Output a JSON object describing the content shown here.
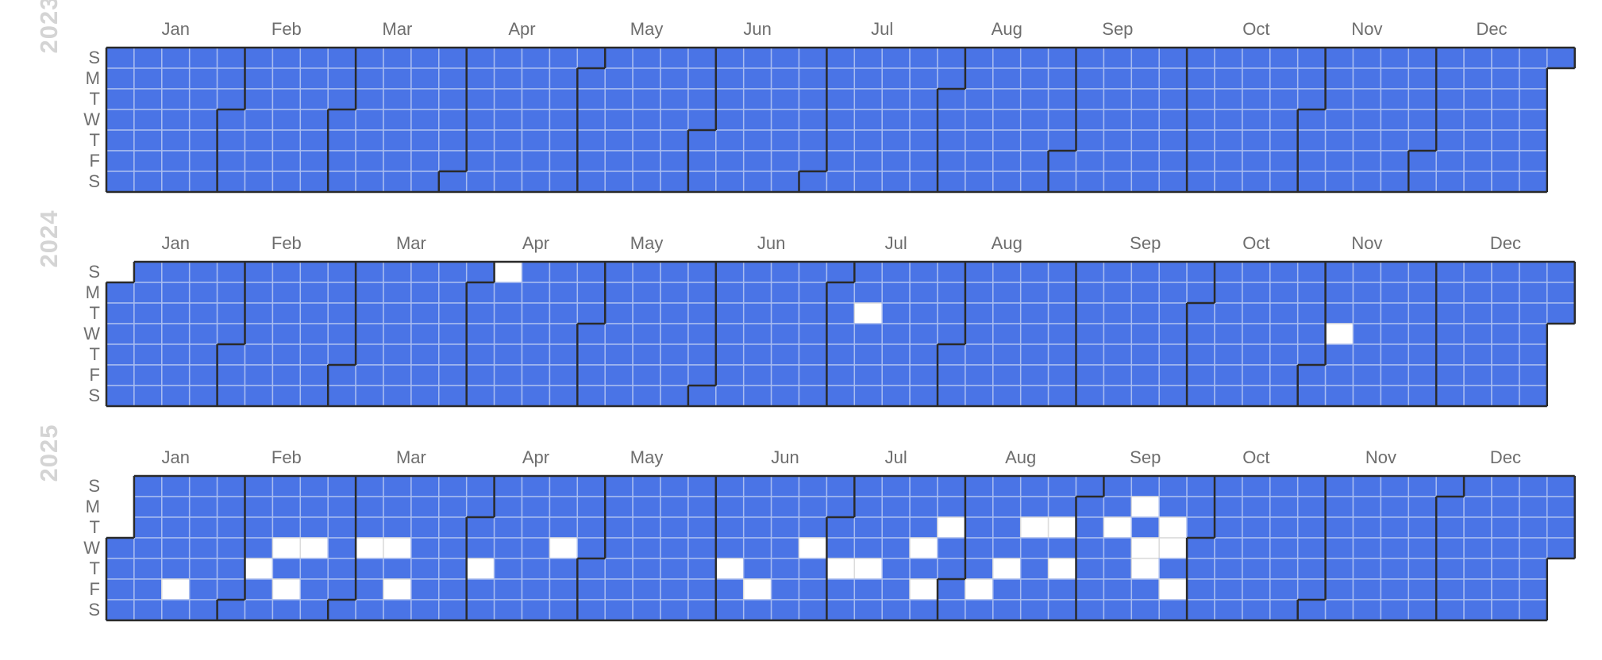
{
  "chart_data": {
    "type": "heatmap",
    "title": "",
    "layout": "calendar heatmap, one row-block per year, weeks as columns, Sunday-first rows",
    "day_labels": [
      "S",
      "M",
      "T",
      "W",
      "T",
      "F",
      "S"
    ],
    "month_labels": [
      "Jan",
      "Feb",
      "Mar",
      "Apr",
      "May",
      "Jun",
      "Jul",
      "Aug",
      "Sep",
      "Oct",
      "Nov",
      "Dec"
    ],
    "colors": {
      "filled": "#4a74e6",
      "empty": "#ffffff",
      "grid_line": "#a8bcf0",
      "month_border": "#2a2a2a"
    },
    "legend": "none",
    "years": [
      {
        "year": "2023",
        "empty_dates": []
      },
      {
        "year": "2024",
        "empty_dates": [
          "2024-04-07",
          "2024-07-09",
          "2024-11-06"
        ]
      },
      {
        "year": "2025",
        "empty_dates": [
          "2025-01-17",
          "2025-02-06",
          "2025-02-12",
          "2025-02-14",
          "2025-02-19",
          "2025-03-05",
          "2025-03-12",
          "2025-03-14",
          "2025-04-03",
          "2025-04-23",
          "2025-06-05",
          "2025-06-13",
          "2025-06-25",
          "2025-07-03",
          "2025-07-10",
          "2025-07-23",
          "2025-07-25",
          "2025-07-29",
          "2025-08-08",
          "2025-08-14",
          "2025-08-19",
          "2025-08-26",
          "2025-08-28",
          "2025-09-09",
          "2025-09-15",
          "2025-09-17",
          "2025-09-18",
          "2025-09-23",
          "2025-09-24",
          "2025-09-26"
        ]
      }
    ]
  }
}
